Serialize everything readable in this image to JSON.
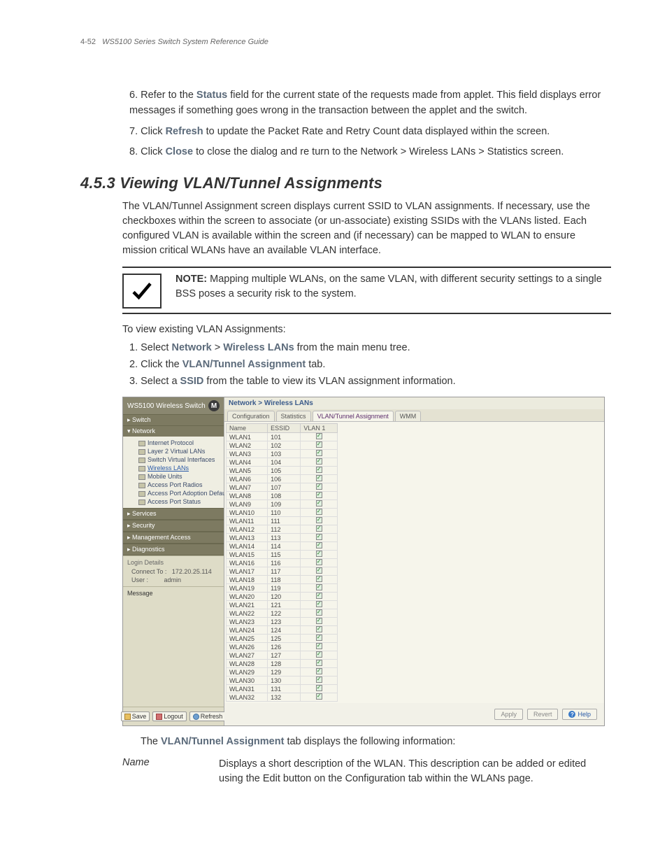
{
  "header": {
    "page_num": "4-52",
    "guide_title": "WS5100 Series Switch System Reference Guide"
  },
  "top_list": [
    {
      "num": "6.",
      "pre": "Refer to the ",
      "bold": "Status",
      "post": " field for the current state of the requests made from applet. This field displays error messages if something goes wrong in the transaction between the applet and the switch."
    },
    {
      "num": "7.",
      "pre": "Click ",
      "bold": "Refresh",
      "post": " to update the Packet Rate and Retry Count data displayed within the screen."
    },
    {
      "num": "8.",
      "pre": "Click ",
      "bold": "Close",
      "post": " to close the dialog and re turn to the Network > Wireless LANs > Statistics screen."
    }
  ],
  "section": {
    "num": "4.5.3",
    "title": "Viewing VLAN/Tunnel Assignments"
  },
  "intro": "The VLAN/Tunnel Assignment screen displays current SSID to VLAN assignments. If necessary, use the checkboxes within the screen to associate (or un-associate) existing SSIDs with the VLANs listed. Each configured VLAN is available within the screen and (if necessary) can be mapped to WLAN to ensure mission critical WLANs have an available VLAN interface.",
  "note": {
    "label": "NOTE:",
    "text": " Mapping multiple WLANs, on the same VLAN, with different security settings to a single BSS poses a security risk to the system."
  },
  "view_line": "To view existing VLAN Assignments:",
  "steps": [
    {
      "num": "1.",
      "parts": [
        "Select ",
        "Network",
        " > ",
        "Wireless LANs",
        " from the main menu tree."
      ],
      "bold_idx": [
        1,
        3
      ]
    },
    {
      "num": "2.",
      "parts": [
        "Click the ",
        "VLAN/Tunnel Assignment",
        " tab."
      ],
      "bold_idx": [
        1
      ]
    },
    {
      "num": "3.",
      "parts": [
        "Select a ",
        "SSID",
        " from the table to view its VLAN assignment information."
      ],
      "bold_idx": [
        1
      ]
    }
  ],
  "screenshot": {
    "product": "WS5100 Wireless Switch",
    "nav": {
      "collapsed_top": "▸ Switch",
      "expanded": "▾ Network",
      "tree": [
        "Internet Protocol",
        "Layer 2 Virtual LANs",
        "Switch Virtual Interfaces",
        "Wireless LANs",
        "Mobile Units",
        "Access Port Radios",
        "Access Port Adoption Defaults",
        "Access Port Status"
      ],
      "tree_selected_index": 3,
      "collapsed_bottom": [
        "▸ Services",
        "▸ Security",
        "▸ Management Access",
        "▸ Diagnostics"
      ]
    },
    "login": {
      "title": "Login Details",
      "connect_label": "Connect To :",
      "connect_val": "172.20.25.114",
      "user_label": "User :",
      "user_val": "admin"
    },
    "message_label": "Message",
    "bottom_buttons": {
      "save": "Save",
      "logout": "Logout",
      "refresh": "Refresh"
    },
    "crumb": "Network > Wireless LANs",
    "tabs": [
      "Configuration",
      "Statistics",
      "VLAN/Tunnel Assignment",
      "WMM"
    ],
    "active_tab": 2,
    "columns": [
      "Name",
      "ESSID",
      "VLAN 1"
    ],
    "rows": [
      [
        "WLAN1",
        "101"
      ],
      [
        "WLAN2",
        "102"
      ],
      [
        "WLAN3",
        "103"
      ],
      [
        "WLAN4",
        "104"
      ],
      [
        "WLAN5",
        "105"
      ],
      [
        "WLAN6",
        "106"
      ],
      [
        "WLAN7",
        "107"
      ],
      [
        "WLAN8",
        "108"
      ],
      [
        "WLAN9",
        "109"
      ],
      [
        "WLAN10",
        "110"
      ],
      [
        "WLAN11",
        "111"
      ],
      [
        "WLAN12",
        "112"
      ],
      [
        "WLAN13",
        "113"
      ],
      [
        "WLAN14",
        "114"
      ],
      [
        "WLAN15",
        "115"
      ],
      [
        "WLAN16",
        "116"
      ],
      [
        "WLAN17",
        "117"
      ],
      [
        "WLAN18",
        "118"
      ],
      [
        "WLAN19",
        "119"
      ],
      [
        "WLAN20",
        "120"
      ],
      [
        "WLAN21",
        "121"
      ],
      [
        "WLAN22",
        "122"
      ],
      [
        "WLAN23",
        "123"
      ],
      [
        "WLAN24",
        "124"
      ],
      [
        "WLAN25",
        "125"
      ],
      [
        "WLAN26",
        "126"
      ],
      [
        "WLAN27",
        "127"
      ],
      [
        "WLAN28",
        "128"
      ],
      [
        "WLAN29",
        "129"
      ],
      [
        "WLAN30",
        "130"
      ],
      [
        "WLAN31",
        "131"
      ],
      [
        "WLAN32",
        "132"
      ]
    ],
    "actions": {
      "apply": "Apply",
      "revert": "Revert",
      "help": "Help"
    }
  },
  "after_shot": {
    "pre": "The ",
    "bold": "VLAN/Tunnel Assignment",
    "post": " tab displays the following information:"
  },
  "def": {
    "term": "Name",
    "text": "Displays a short description of the WLAN. This description can be added or edited using the Edit button on the Configuration tab within the WLANs page."
  }
}
